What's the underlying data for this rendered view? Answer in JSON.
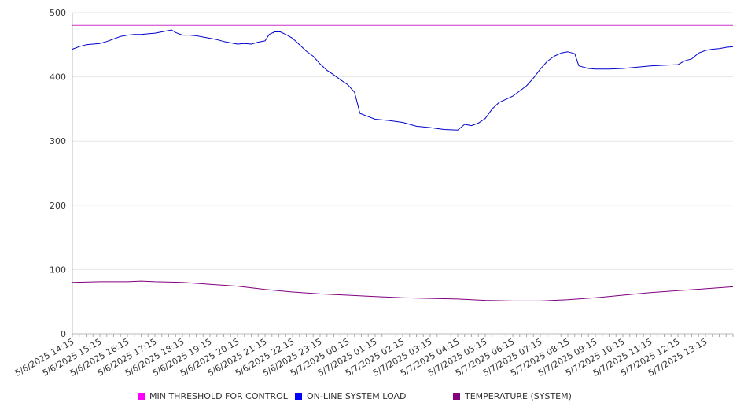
{
  "chart_data": {
    "type": "line",
    "title": "",
    "xlabel": "",
    "ylabel": "",
    "ylim": [
      0,
      500
    ],
    "yticks": [
      0,
      100,
      200,
      300,
      400,
      500
    ],
    "grid": "horizontal",
    "legend_position": "bottom",
    "x_categories": [
      "5/6/2025 14:15",
      "5/6/2025 15:15",
      "5/6/2025 16:15",
      "5/6/2025 17:15",
      "5/6/2025 18:15",
      "5/6/2025 19:15",
      "5/6/2025 20:15",
      "5/6/2025 21:15",
      "5/6/2025 22:15",
      "5/6/2025 23:15",
      "5/7/2025 00:15",
      "5/7/2025 01:15",
      "5/7/2025 02:15",
      "5/7/2025 03:15",
      "5/7/2025 04:15",
      "5/7/2025 05:15",
      "5/7/2025 06:15",
      "5/7/2025 07:15",
      "5/7/2025 08:15",
      "5/7/2025 09:15",
      "5/7/2025 10:15",
      "5/7/2025 11:15",
      "5/7/2025 12:15",
      "5/7/2025 13:15"
    ],
    "series": [
      {
        "name": "MIN THRESHOLD FOR CONTROL",
        "color": "#cc33cc",
        "legend_color": "#ff00ff",
        "points": [
          [
            0,
            480
          ],
          [
            24,
            480
          ]
        ]
      },
      {
        "name": "ON-LINE SYSTEM LOAD",
        "color": "#0000cc",
        "legend_color": "#0000ff",
        "points": [
          [
            0,
            443
          ],
          [
            0.25,
            447
          ],
          [
            0.5,
            450
          ],
          [
            0.75,
            451
          ],
          [
            1,
            452
          ],
          [
            1.25,
            455
          ],
          [
            1.5,
            459
          ],
          [
            1.75,
            463
          ],
          [
            2,
            465
          ],
          [
            2.25,
            466
          ],
          [
            2.5,
            466
          ],
          [
            2.75,
            467
          ],
          [
            3,
            468
          ],
          [
            3.25,
            470
          ],
          [
            3.5,
            472
          ],
          [
            3.6,
            473
          ],
          [
            3.75,
            469
          ],
          [
            4,
            465
          ],
          [
            4.25,
            465
          ],
          [
            4.5,
            464
          ],
          [
            4.75,
            462
          ],
          [
            5,
            460
          ],
          [
            5.25,
            458
          ],
          [
            5.5,
            455
          ],
          [
            5.75,
            453
          ],
          [
            6,
            451
          ],
          [
            6.25,
            452
          ],
          [
            6.5,
            451
          ],
          [
            6.75,
            454
          ],
          [
            7,
            456
          ],
          [
            7.15,
            466
          ],
          [
            7.35,
            470
          ],
          [
            7.55,
            470
          ],
          [
            7.75,
            466
          ],
          [
            8,
            460
          ],
          [
            8.25,
            450
          ],
          [
            8.5,
            440
          ],
          [
            8.75,
            432
          ],
          [
            9,
            420
          ],
          [
            9.25,
            410
          ],
          [
            9.5,
            403
          ],
          [
            9.75,
            395
          ],
          [
            10,
            388
          ],
          [
            10.25,
            376
          ],
          [
            10.45,
            343
          ],
          [
            10.75,
            338
          ],
          [
            11,
            334
          ],
          [
            11.5,
            332
          ],
          [
            12,
            329
          ],
          [
            12.5,
            323
          ],
          [
            13,
            321
          ],
          [
            13.5,
            318
          ],
          [
            14,
            317
          ],
          [
            14.25,
            326
          ],
          [
            14.5,
            324
          ],
          [
            14.75,
            328
          ],
          [
            15,
            335
          ],
          [
            15.25,
            350
          ],
          [
            15.5,
            360
          ],
          [
            15.75,
            365
          ],
          [
            16,
            370
          ],
          [
            16.25,
            378
          ],
          [
            16.5,
            386
          ],
          [
            16.75,
            398
          ],
          [
            17,
            412
          ],
          [
            17.25,
            424
          ],
          [
            17.5,
            432
          ],
          [
            17.75,
            437
          ],
          [
            18,
            439
          ],
          [
            18.25,
            436
          ],
          [
            18.4,
            417
          ],
          [
            18.75,
            413
          ],
          [
            19,
            412
          ],
          [
            19.5,
            412
          ],
          [
            20,
            413
          ],
          [
            20.5,
            415
          ],
          [
            21,
            417
          ],
          [
            21.5,
            418
          ],
          [
            22,
            419
          ],
          [
            22.25,
            425
          ],
          [
            22.5,
            428
          ],
          [
            22.75,
            437
          ],
          [
            23,
            441
          ],
          [
            23.25,
            443
          ],
          [
            23.5,
            444
          ],
          [
            23.75,
            446
          ],
          [
            24,
            447
          ]
        ]
      },
      {
        "name": "TEMPERATURE (SYSTEM)",
        "color": "#800080",
        "legend_color": "#800080",
        "points": [
          [
            0,
            80
          ],
          [
            1,
            81
          ],
          [
            2,
            81
          ],
          [
            2.5,
            82
          ],
          [
            3,
            81
          ],
          [
            4,
            80
          ],
          [
            5,
            77
          ],
          [
            6,
            74
          ],
          [
            7,
            69
          ],
          [
            8,
            65
          ],
          [
            9,
            62
          ],
          [
            10,
            60
          ],
          [
            11,
            58
          ],
          [
            12,
            56
          ],
          [
            13,
            55
          ],
          [
            14,
            54
          ],
          [
            15,
            52
          ],
          [
            16,
            51
          ],
          [
            17,
            51
          ],
          [
            18,
            53
          ],
          [
            19,
            56
          ],
          [
            20,
            60
          ],
          [
            21,
            64
          ],
          [
            22,
            67
          ],
          [
            23,
            70
          ],
          [
            24,
            73
          ]
        ]
      }
    ]
  }
}
